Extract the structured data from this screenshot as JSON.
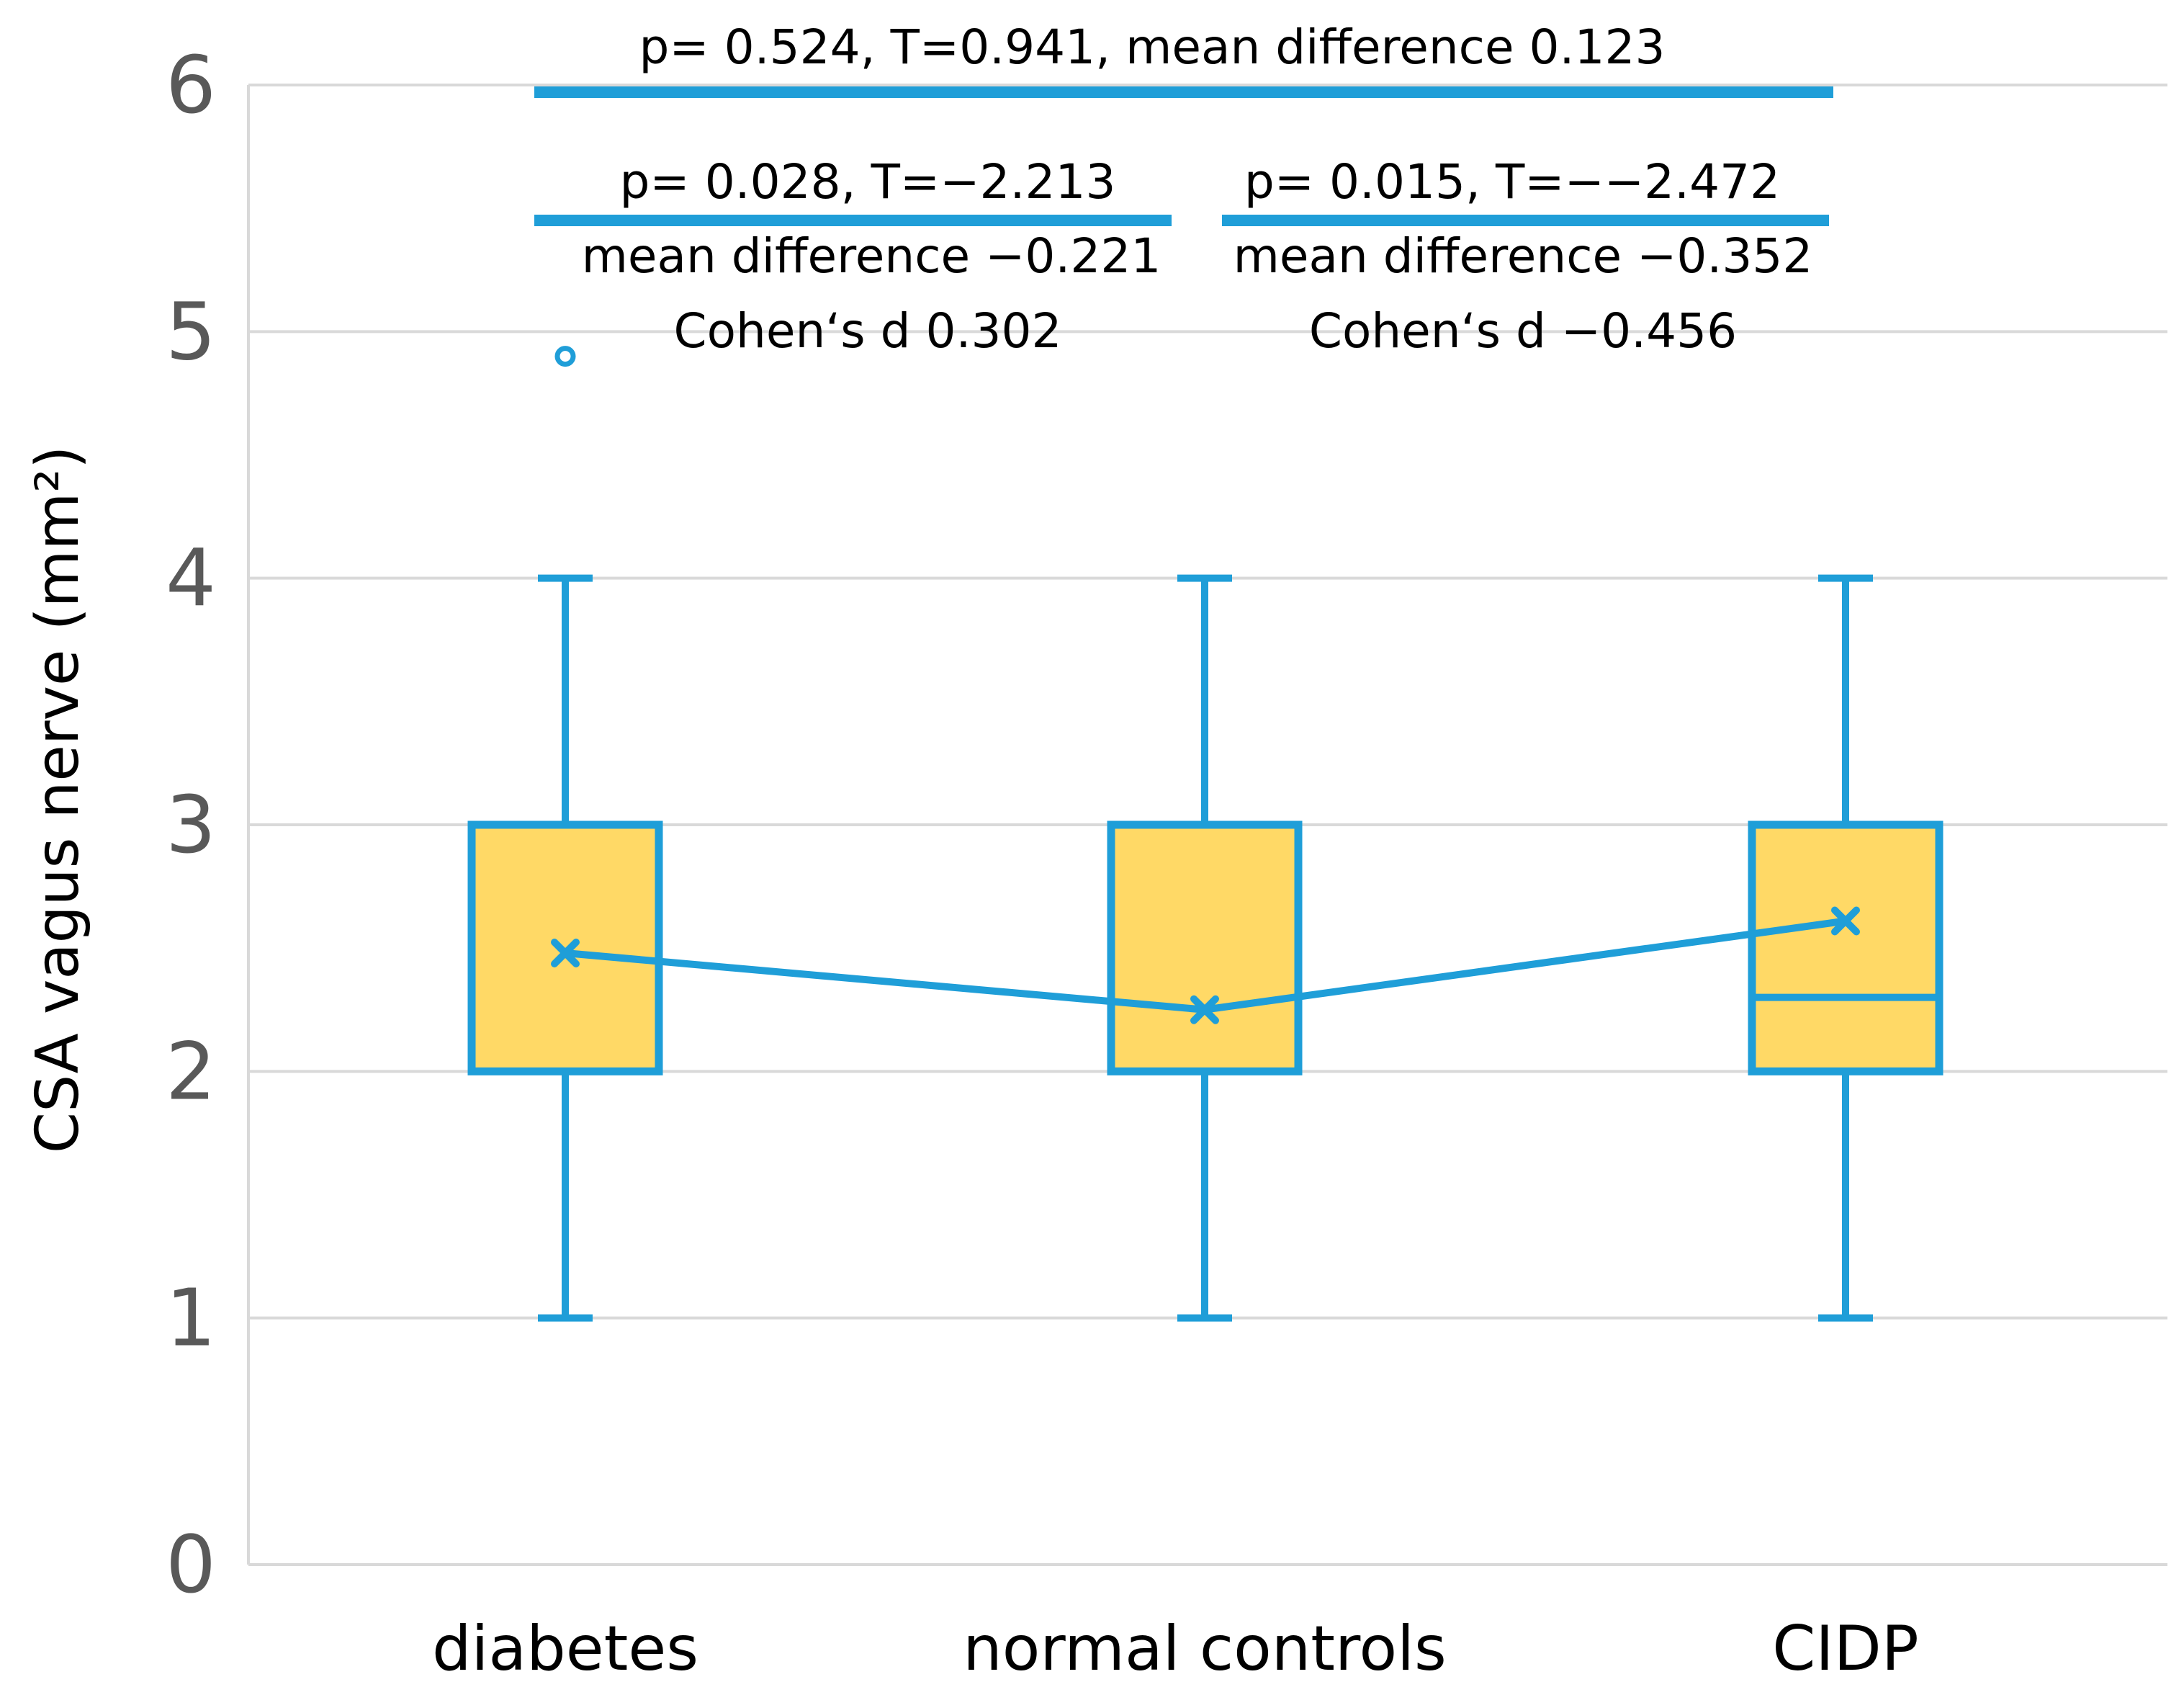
{
  "chart_data": {
    "type": "box",
    "title": "",
    "xlabel": "",
    "ylabel": "CSA vagus nerve (mm²)",
    "ylim": [
      0,
      6
    ],
    "yticks": [
      0,
      1,
      2,
      3,
      4,
      5,
      6
    ],
    "ytick_labels": [
      "0",
      "1",
      "2",
      "3",
      "4",
      "5",
      "6"
    ],
    "grid": true,
    "categories": [
      "diabetes",
      "normal controls",
      "CIDP"
    ],
    "series": [
      {
        "name": "CSA vagus nerve",
        "boxes": [
          {
            "category": "diabetes",
            "min": 1,
            "q1": 2,
            "median": 3,
            "q3": 3,
            "max": 4,
            "mean": 2.48,
            "outliers": [
              4.9
            ]
          },
          {
            "category": "normal controls",
            "min": 1,
            "q1": 2,
            "median": 3,
            "q3": 3,
            "max": 4,
            "mean": 2.25,
            "outliers": []
          },
          {
            "category": "CIDP",
            "min": 1,
            "q1": 2,
            "median": 2.3,
            "q3": 3,
            "max": 4,
            "mean": 2.61,
            "outliers": []
          }
        ]
      }
    ],
    "annotations": [
      {
        "id": "dm_vs_cidp",
        "from": 0,
        "to": 2,
        "lines": [
          "p= 0.524, T=0.941, mean difference 0.123"
        ]
      },
      {
        "id": "dm_vs_nc",
        "from": 0,
        "to": 1,
        "lines": [
          "p= 0.028, T=−2.213",
          "mean difference −0.221",
          "Cohen‘s d 0.302"
        ]
      },
      {
        "id": "nc_vs_cidp",
        "from": 1,
        "to": 2,
        "lines": [
          "p= 0.015, T=−−2.472",
          "mean difference −0.352",
          "Cohen‘s d −0.456"
        ]
      }
    ]
  },
  "colors": {
    "box_fill": "#ffd966",
    "accent": "#1f9ed8",
    "grid": "#d9d9d9",
    "tick_text": "#595959"
  }
}
